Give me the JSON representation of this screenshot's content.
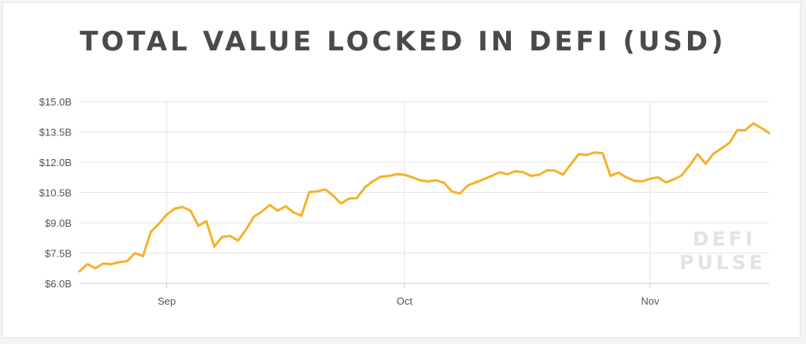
{
  "chart_data": {
    "type": "line",
    "title": "TOTAL VALUE LOCKED IN DEFI (USD)",
    "xlabel": "",
    "ylabel": "",
    "ylim": [
      6.0,
      15.0
    ],
    "y_ticks": [
      6.0,
      7.5,
      9.0,
      10.5,
      12.0,
      13.5,
      15.0
    ],
    "y_tick_labels": [
      "$6.0B",
      "$7.5B",
      "$9.0B",
      "$10.5B",
      "$12.0B",
      "$13.5B",
      "$15.0B"
    ],
    "x_ticks": [
      {
        "label": "Sep",
        "date": "2020-09-01"
      },
      {
        "label": "Oct",
        "date": "2020-10-01"
      },
      {
        "label": "Nov",
        "date": "2020-11-01"
      }
    ],
    "xlim": [
      "2020-08-21",
      "2020-11-16"
    ],
    "grid": true,
    "line_color": "#f5b12a",
    "series": [
      {
        "name": "",
        "x": [
          "2020-08-21",
          "2020-08-22",
          "2020-08-23",
          "2020-08-24",
          "2020-08-25",
          "2020-08-26",
          "2020-08-27",
          "2020-08-28",
          "2020-08-29",
          "2020-08-30",
          "2020-08-31",
          "2020-09-01",
          "2020-09-02",
          "2020-09-03",
          "2020-09-04",
          "2020-09-05",
          "2020-09-06",
          "2020-09-07",
          "2020-09-08",
          "2020-09-09",
          "2020-09-10",
          "2020-09-11",
          "2020-09-12",
          "2020-09-13",
          "2020-09-14",
          "2020-09-15",
          "2020-09-16",
          "2020-09-17",
          "2020-09-18",
          "2020-09-19",
          "2020-09-20",
          "2020-09-21",
          "2020-09-22",
          "2020-09-23",
          "2020-09-24",
          "2020-09-25",
          "2020-09-26",
          "2020-09-27",
          "2020-09-28",
          "2020-09-29",
          "2020-09-30",
          "2020-10-01",
          "2020-10-02",
          "2020-10-03",
          "2020-10-04",
          "2020-10-05",
          "2020-10-06",
          "2020-10-07",
          "2020-10-08",
          "2020-10-09",
          "2020-10-10",
          "2020-10-11",
          "2020-10-12",
          "2020-10-13",
          "2020-10-14",
          "2020-10-15",
          "2020-10-16",
          "2020-10-17",
          "2020-10-18",
          "2020-10-19",
          "2020-10-20",
          "2020-10-21",
          "2020-10-22",
          "2020-10-23",
          "2020-10-24",
          "2020-10-25",
          "2020-10-26",
          "2020-10-27",
          "2020-10-28",
          "2020-10-29",
          "2020-10-30",
          "2020-10-31",
          "2020-11-01",
          "2020-11-02",
          "2020-11-03",
          "2020-11-04",
          "2020-11-05",
          "2020-11-06",
          "2020-11-07",
          "2020-11-08",
          "2020-11-09",
          "2020-11-10",
          "2020-11-11",
          "2020-11-12",
          "2020-11-13",
          "2020-11-14",
          "2020-11-15",
          "2020-11-16"
        ],
        "values": [
          6.6,
          6.95,
          6.75,
          6.98,
          6.95,
          7.05,
          7.1,
          7.5,
          7.35,
          8.55,
          8.95,
          9.4,
          9.7,
          9.78,
          9.6,
          8.85,
          9.08,
          7.82,
          8.3,
          8.35,
          8.12,
          8.65,
          9.3,
          9.55,
          9.88,
          9.6,
          9.82,
          9.52,
          9.35,
          10.52,
          10.55,
          10.65,
          10.35,
          9.95,
          10.2,
          10.22,
          10.75,
          11.05,
          11.28,
          11.32,
          11.4,
          11.38,
          11.25,
          11.1,
          11.05,
          11.1,
          10.98,
          10.55,
          10.45,
          10.85,
          11.0,
          11.15,
          11.32,
          11.5,
          11.4,
          11.55,
          11.5,
          11.32,
          11.38,
          11.6,
          11.58,
          11.38,
          11.9,
          12.4,
          12.35,
          12.48,
          12.45,
          11.32,
          11.48,
          11.25,
          11.08,
          11.05,
          11.18,
          11.25,
          11.0,
          11.15,
          11.35,
          11.85,
          12.4,
          11.92,
          12.42,
          12.68,
          12.95,
          13.58,
          13.58,
          13.92,
          13.7,
          13.45
        ]
      }
    ],
    "watermark_lines": [
      "DEFI",
      "PULSE"
    ]
  }
}
